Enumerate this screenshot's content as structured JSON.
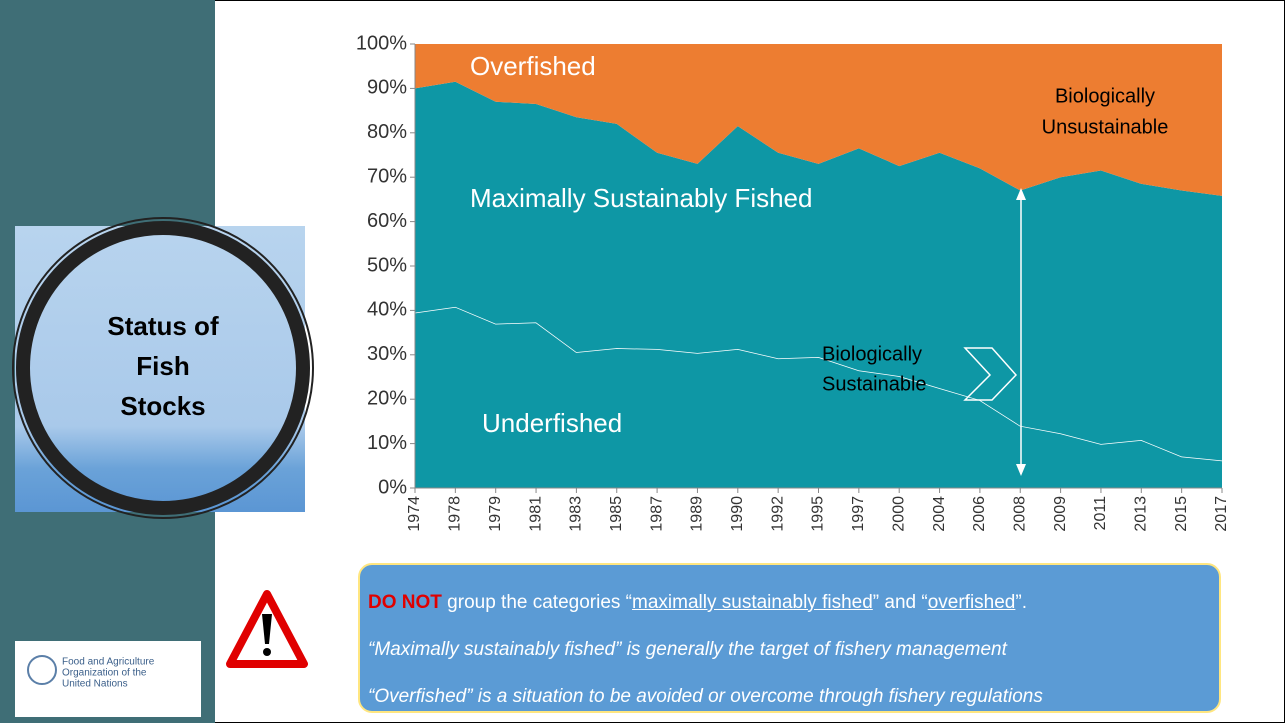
{
  "side_title": [
    "Status of",
    "Fish",
    "Stocks"
  ],
  "chart_data": {
    "type": "stacked_area",
    "categories": [
      "1974",
      "1978",
      "1979",
      "1981",
      "1983",
      "1985",
      "1987",
      "1989",
      "1990",
      "1992",
      "1995",
      "1997",
      "2000",
      "2004",
      "2006",
      "2008",
      "2009",
      "2011",
      "2013",
      "2015",
      "2017"
    ],
    "series": [
      {
        "name": "Underfished",
        "color": "#0e97a5",
        "outline": "#ffffff",
        "values": [
          39.5,
          40.8,
          37,
          37.3,
          30.6,
          31.5,
          31.3,
          30.4,
          31.3,
          29.2,
          29.5,
          26.5,
          25.2,
          22.5,
          19.8,
          14,
          12.3,
          9.9,
          10.8,
          7.1,
          6.2
        ]
      },
      {
        "name": "Maximally Sustainably Fished",
        "color": "#0e97a5",
        "values": [
          50.5,
          50.7,
          50,
          49.2,
          52.9,
          50.5,
          44.2,
          42.6,
          50.2,
          46.3,
          43.5,
          50,
          47.3,
          53,
          52.2,
          53,
          57.7,
          61.6,
          57.7,
          59.9,
          59.6
        ]
      },
      {
        "name": "Overfished",
        "color": "#ed7d31",
        "values": [
          10,
          8.5,
          13,
          13.5,
          16.5,
          18,
          24.5,
          27,
          18.5,
          24.5,
          27,
          23.5,
          27.5,
          24.5,
          28,
          33,
          30,
          28.5,
          31.5,
          33,
          34.2
        ]
      }
    ],
    "ylim": [
      0,
      100
    ],
    "yticks": [
      {
        "value": 0,
        "label": "0%"
      },
      {
        "value": 10,
        "label": "10%"
      },
      {
        "value": 20,
        "label": "20%"
      },
      {
        "value": 30,
        "label": "30%"
      },
      {
        "value": 40,
        "label": "40%"
      },
      {
        "value": 50,
        "label": "50%"
      },
      {
        "value": 60,
        "label": "60%"
      },
      {
        "value": 70,
        "label": "70%"
      },
      {
        "value": 80,
        "label": "80%"
      },
      {
        "value": 90,
        "label": "90%"
      },
      {
        "value": 100,
        "label": "100%"
      }
    ],
    "annotations": [
      [
        "Biologically",
        "Unsustainable"
      ],
      [
        "Biologically",
        "Sustainable"
      ]
    ]
  },
  "notice": {
    "emphasis": "DO NOT",
    "text1": " group the categories “",
    "link1": "maximally sustainably fished",
    "text2": "” and “",
    "link2": "overfished",
    "text3": "”.",
    "line2": "“Maximally sustainably fished” is generally the target of fishery management",
    "line3": "“Overfished” is a situation to be avoided or overcome through fishery regulations"
  },
  "logo": [
    "Food and Agriculture",
    "Organization of the",
    "United Nations"
  ]
}
